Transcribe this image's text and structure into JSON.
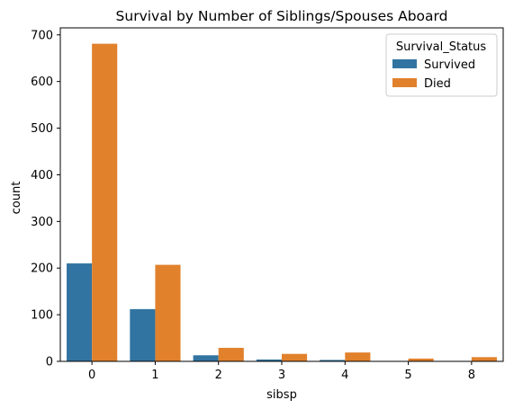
{
  "chart_data": {
    "type": "bar",
    "title": "Survival by Number of Siblings/Spouses Aboard",
    "xlabel": "sibsp",
    "ylabel": "count",
    "categories": [
      "0",
      "1",
      "2",
      "3",
      "4",
      "5",
      "8"
    ],
    "series": [
      {
        "name": "Survived",
        "color": "#3274a1",
        "values": [
          210,
          112,
          13,
          4,
          3,
          0,
          0
        ]
      },
      {
        "name": "Died",
        "color": "#e1812c",
        "values": [
          681,
          207,
          29,
          16,
          19,
          6,
          9
        ]
      }
    ],
    "ylim": [
      0,
      715
    ],
    "yticks": [
      0,
      100,
      200,
      300,
      400,
      500,
      600,
      700
    ],
    "legend": {
      "title": "Survival_Status",
      "placement": "top-right"
    },
    "grid": false
  }
}
